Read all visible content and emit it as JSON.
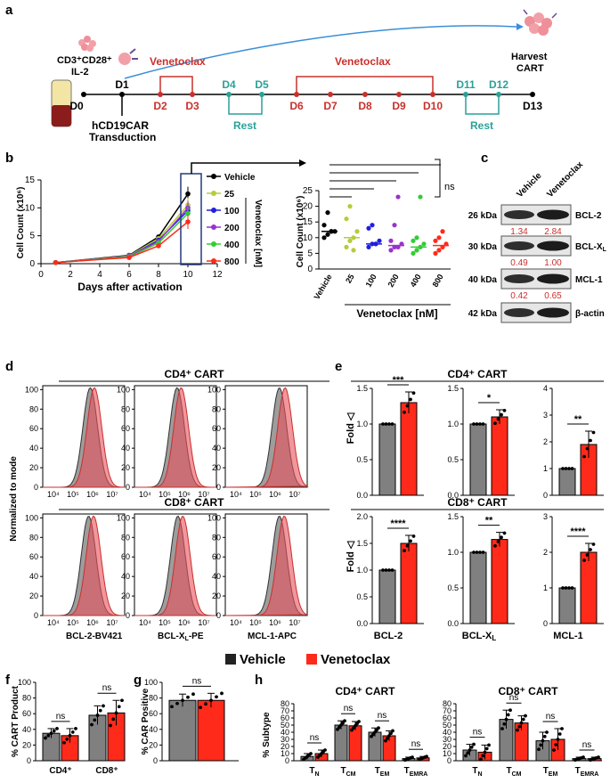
{
  "panels": {
    "a": "a",
    "b": "b",
    "c": "c",
    "d": "d",
    "e": "e",
    "f": "f",
    "g": "g",
    "h": "h"
  },
  "timeline": {
    "stim": "CD3⁺CD28⁺",
    "il2": "IL-2",
    "harvest1": "Harvest",
    "harvest2": "CART",
    "ven1": "Venetoclax",
    "ven2": "Venetoclax",
    "rest1": "Rest",
    "rest2": "Rest",
    "transduction1": "hCD19CAR",
    "transduction2": "Transduction",
    "days": [
      "D0",
      "D1",
      "D2",
      "D3",
      "D4",
      "D5",
      "D6",
      "D7",
      "D8",
      "D9",
      "D10",
      "D11",
      "D12",
      "D13"
    ]
  },
  "colors": {
    "vehicle": "#808080",
    "venetoclax": "#ff2a1a",
    "red_text": "#c8302c",
    "teal": "#2aa198",
    "conc": [
      "#000000",
      "#b5cc3a",
      "#1f1fe0",
      "#9933cc",
      "#33cc33",
      "#ff2a1a"
    ]
  },
  "legend_b": {
    "items": [
      "Vehicle",
      "25",
      "100",
      "200",
      "400",
      "800"
    ],
    "unit": "Venetoclax [nM]"
  },
  "chart_data": [
    {
      "type": "line",
      "id": "b-growth",
      "xlabel": "Days after activation",
      "ylabel": "Cell Count (x10⁶)",
      "xlim": [
        0,
        12
      ],
      "ylim": [
        0,
        15
      ],
      "xticks": [
        "0",
        "2",
        "4",
        "6",
        "8",
        "10",
        "12"
      ],
      "yticks": [
        "0",
        "5",
        "10",
        "15"
      ],
      "x": [
        1,
        6,
        8,
        10
      ],
      "series": [
        {
          "name": "Vehicle",
          "values": [
            0.2,
            1.5,
            4.8,
            12.5
          ]
        },
        {
          "name": "25",
          "values": [
            0.2,
            1.4,
            4.5,
            10.5
          ]
        },
        {
          "name": "100",
          "values": [
            0.2,
            1.3,
            4.2,
            9.5
          ]
        },
        {
          "name": "200",
          "values": [
            0.2,
            1.3,
            4.0,
            10.0
          ]
        },
        {
          "name": "400",
          "values": [
            0.2,
            1.2,
            3.7,
            9.0
          ]
        },
        {
          "name": "800",
          "values": [
            0.2,
            1.1,
            3.2,
            7.5
          ]
        }
      ]
    },
    {
      "type": "scatter",
      "id": "b-day10",
      "ylabel": "Cell Count (x10⁶)",
      "xlabel": "Venetoclax [nM]",
      "ylim": [
        0,
        25
      ],
      "yticks": [
        "0",
        "5",
        "10",
        "15",
        "20",
        "25"
      ],
      "categories": [
        "Vehicle",
        "25",
        "100",
        "200",
        "400",
        "800"
      ],
      "points": [
        [
          10,
          11,
          12,
          12,
          14,
          18,
          12
        ],
        [
          7,
          9,
          10,
          12,
          16,
          20,
          6
        ],
        [
          7,
          8,
          8,
          9,
          13,
          14,
          8
        ],
        [
          6,
          7,
          7,
          8,
          9,
          14,
          23
        ],
        [
          5,
          6,
          7,
          8,
          9,
          10,
          23
        ],
        [
          5,
          6,
          7,
          8,
          9,
          10,
          12
        ]
      ],
      "medians": [
        12,
        10,
        8,
        7.5,
        7,
        7.5
      ],
      "ns": "ns"
    },
    {
      "type": "bar",
      "id": "e-cd4-bcl2",
      "ylim": [
        0,
        1.5
      ],
      "yticks": [
        "0.0",
        "0.5",
        "1.0",
        "1.5"
      ],
      "values": [
        1.0,
        1.3
      ],
      "errors": [
        0,
        0.15
      ],
      "sig": "***"
    },
    {
      "type": "bar",
      "id": "e-cd4-bclxl",
      "ylim": [
        0,
        1.5
      ],
      "yticks": [
        "0.0",
        "0.5",
        "1.0",
        "1.5"
      ],
      "values": [
        1.0,
        1.1
      ],
      "errors": [
        0,
        0.1
      ],
      "sig": "*"
    },
    {
      "type": "bar",
      "id": "e-cd4-mcl1",
      "ylim": [
        0,
        4
      ],
      "yticks": [
        "0",
        "1",
        "2",
        "3",
        "4"
      ],
      "values": [
        1.0,
        1.9
      ],
      "errors": [
        0,
        0.5
      ],
      "sig": "**"
    },
    {
      "type": "bar",
      "id": "e-cd8-bcl2",
      "ylim": [
        0,
        2
      ],
      "yticks": [
        "0.0",
        "0.5",
        "1.0",
        "1.5",
        "2.0"
      ],
      "values": [
        1.0,
        1.5
      ],
      "errors": [
        0,
        0.15
      ],
      "sig": "****"
    },
    {
      "type": "bar",
      "id": "e-cd8-bclxl",
      "ylim": [
        0,
        1.5
      ],
      "yticks": [
        "0.0",
        "0.5",
        "1.0",
        "1.5"
      ],
      "values": [
        1.0,
        1.18
      ],
      "errors": [
        0,
        0.1
      ],
      "sig": "**"
    },
    {
      "type": "bar",
      "id": "e-cd8-mcl1",
      "ylim": [
        0,
        3
      ],
      "yticks": [
        "0",
        "1",
        "2",
        "3"
      ],
      "values": [
        1.0,
        2.0
      ],
      "errors": [
        0,
        0.25
      ],
      "sig": "****"
    },
    {
      "type": "bar",
      "id": "f",
      "ylabel": "% CART Product",
      "ylim": [
        0,
        100
      ],
      "yticks": [
        "0",
        "20",
        "40",
        "60",
        "80",
        "100"
      ],
      "categories": [
        "CD4⁺",
        "CD8⁺"
      ],
      "series": [
        {
          "name": "Vehicle",
          "values": [
            35,
            58
          ],
          "errors": [
            6,
            12
          ]
        },
        {
          "name": "Venetoclax",
          "values": [
            32,
            61
          ],
          "errors": [
            9,
            16
          ]
        }
      ],
      "sig": [
        "ns",
        "ns"
      ]
    },
    {
      "type": "bar",
      "id": "g",
      "ylabel": "% CAR Positive",
      "ylim": [
        0,
        100
      ],
      "yticks": [
        "0",
        "20",
        "40",
        "60",
        "80",
        "100"
      ],
      "series": [
        {
          "name": "Vehicle",
          "values": [
            77
          ],
          "errors": [
            8
          ]
        },
        {
          "name": "Venetoclax",
          "values": [
            77
          ],
          "errors": [
            9
          ]
        }
      ],
      "sig": [
        "ns"
      ]
    },
    {
      "type": "bar",
      "id": "h-cd4",
      "title": "CD4⁺ CART",
      "ylabel": "% Subtype",
      "ylim": [
        0,
        80
      ],
      "yticks": [
        "0",
        "10",
        "20",
        "30",
        "40",
        "50",
        "60",
        "70",
        "80"
      ],
      "categories": [
        "T_N",
        "T_CM",
        "T_EM",
        "T_EMRA"
      ],
      "series": [
        {
          "name": "Vehicle",
          "values": [
            6,
            50,
            40,
            3
          ],
          "errors": [
            4,
            6,
            6,
            2
          ]
        },
        {
          "name": "Venetoclax",
          "values": [
            10,
            49,
            35,
            4
          ],
          "errors": [
            5,
            6,
            7,
            2
          ]
        }
      ],
      "sig": [
        "ns",
        "ns",
        "ns",
        "ns"
      ]
    },
    {
      "type": "bar",
      "id": "h-cd8",
      "title": "CD8⁺ CART",
      "ylabel": "% Subtype",
      "ylim": [
        0,
        80
      ],
      "yticks": [
        "0",
        "10",
        "20",
        "30",
        "40",
        "50",
        "60",
        "70",
        "80"
      ],
      "categories": [
        "T_N",
        "T_CM",
        "T_EM",
        "T_EMRA"
      ],
      "series": [
        {
          "name": "Vehicle",
          "values": [
            15,
            58,
            28,
            3
          ],
          "errors": [
            8,
            13,
            12,
            2
          ]
        },
        {
          "name": "Venetoclax",
          "values": [
            12,
            53,
            30,
            3
          ],
          "errors": [
            10,
            10,
            15,
            2
          ]
        }
      ],
      "sig": [
        "ns",
        "ns",
        "ns",
        "ns"
      ]
    }
  ],
  "blot": {
    "headers": [
      "Vehicle",
      "Venetoclax"
    ],
    "rows": [
      {
        "kda": "26 kDa",
        "label": "BCL-2",
        "v1": "1.34",
        "v2": "2.84"
      },
      {
        "kda": "30 kDa",
        "label": "BCL-X",
        "v1": "0.49",
        "v2": "1.00"
      },
      {
        "kda": "40 kDa",
        "label": "MCL-1",
        "v1": "0.42",
        "v2": "0.65"
      },
      {
        "kda": "42 kDa",
        "label": "β-actin",
        "v1": "",
        "v2": ""
      }
    ]
  },
  "flow": {
    "cd4_title": "CD4⁺ CART",
    "cd8_title": "CD8⁺ CART",
    "ylabel": "Normalized to mode",
    "yticks": [
      "0",
      "20",
      "40",
      "60",
      "80",
      "100"
    ],
    "xticks": [
      "10⁴",
      "10⁵",
      "10⁶",
      "10⁷"
    ],
    "xlabels": [
      "BCL-2-BV421",
      "BCL-X",
      "MCL-1-APC"
    ],
    "sub_L": "L"
  },
  "panel_e": {
    "cd4_title": "CD4⁺ CART",
    "cd8_title": "CD8⁺ CART",
    "ylabel": "Fold ◁",
    "xlabels": [
      "BCL-2",
      "BCL-X",
      "MCL-1"
    ]
  },
  "legend_main": {
    "vehicle": "Vehicle",
    "venetoclax": "Venetoclax"
  }
}
